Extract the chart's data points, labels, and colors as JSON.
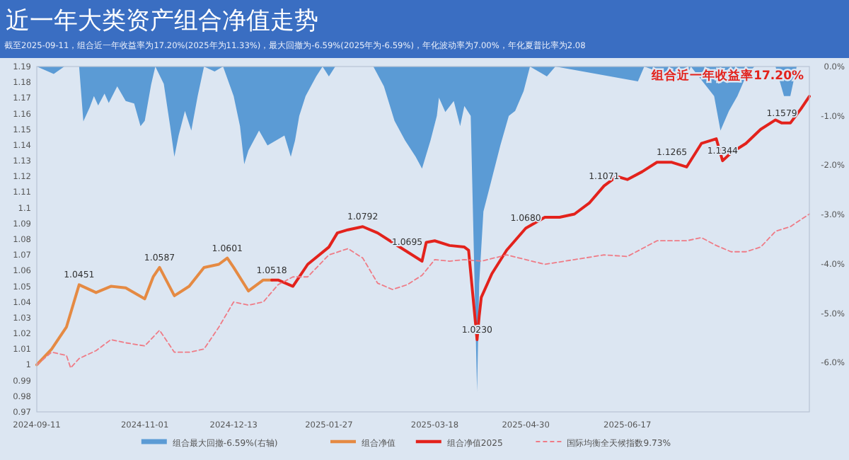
{
  "chart_data": {
    "type": "line",
    "title": "近一年大类资产组合净值走势",
    "subtitle": "截至2025-09-11，组合近一年收益率为17.20%(2025年为11.33%)，最大回撤为-6.59%(2025年为-6.59%)，年化波动率为7.00%，年化夏普比率为2.08",
    "xlim": [
      "2024-09-11",
      "2025-09-11"
    ],
    "xticks": [
      "2024-09-11",
      "2024-11-01",
      "2024-12-13",
      "2025-01-27",
      "2025-03-18",
      "2025-04-30",
      "2025-06-17"
    ],
    "ylim": [
      0.97,
      1.19
    ],
    "yticks": [
      0.97,
      0.98,
      0.99,
      1,
      1.01,
      1.02,
      1.03,
      1.04,
      1.05,
      1.06,
      1.07,
      1.08,
      1.09,
      1.1,
      1.11,
      1.12,
      1.13,
      1.14,
      1.15,
      1.16,
      1.17,
      1.18,
      1.19
    ],
    "y2lim": [
      -7,
      0
    ],
    "y2ticks": [
      {
        "value": 0,
        "label": "0.0%"
      },
      {
        "value": -1,
        "label": "-1.0%"
      },
      {
        "value": -2,
        "label": "-2.0%"
      },
      {
        "value": -3,
        "label": "-3.0%"
      },
      {
        "value": -4,
        "label": "-4.0%"
      },
      {
        "value": -5,
        "label": "-5.0%"
      },
      {
        "value": -6,
        "label": "-6.0%"
      }
    ],
    "legend": "bottom",
    "series": [
      {
        "name": "组合最大回撤-6.59%(右轴)",
        "type": "area",
        "axis": "y2",
        "color": "#5b9bd5",
        "x": [
          "2024-09-11",
          "2024-09-19",
          "2024-09-24",
          "2024-10-01",
          "2024-10-03",
          "2024-10-06",
          "2024-10-08",
          "2024-10-10",
          "2024-10-13",
          "2024-10-15",
          "2024-10-19",
          "2024-10-23",
          "2024-10-27",
          "2024-10-30",
          "2024-11-01",
          "2024-11-04",
          "2024-11-06",
          "2024-11-10",
          "2024-11-13",
          "2024-11-15",
          "2024-11-17",
          "2024-11-20",
          "2024-11-23",
          "2024-11-26",
          "2024-11-29",
          "2024-12-04",
          "2024-12-08",
          "2024-12-13",
          "2024-12-16",
          "2024-12-18",
          "2024-12-20",
          "2024-12-25",
          "2024-12-29",
          "2025-01-02",
          "2025-01-06",
          "2025-01-09",
          "2025-01-11",
          "2025-01-13",
          "2025-01-16",
          "2025-01-21",
          "2025-01-24",
          "2025-01-27",
          "2025-01-30",
          "2025-02-17",
          "2025-02-22",
          "2025-02-27",
          "2025-03-04",
          "2025-03-09",
          "2025-03-12",
          "2025-03-16",
          "2025-03-19",
          "2025-03-20",
          "2025-03-23",
          "2025-03-27",
          "2025-03-30",
          "2025-04-01",
          "2025-04-04",
          "2025-04-07",
          "2025-04-08",
          "2025-04-10",
          "2025-04-14",
          "2025-04-18",
          "2025-04-22",
          "2025-04-25",
          "2025-04-29",
          "2025-05-02",
          "2025-05-10",
          "2025-05-14",
          "2025-06-22",
          "2025-06-25",
          "2025-07-14",
          "2025-07-17",
          "2025-07-28",
          "2025-07-31",
          "2025-08-04",
          "2025-08-08",
          "2025-08-12",
          "2025-08-16",
          "2025-08-26",
          "2025-08-30",
          "2025-09-02",
          "2025-09-05",
          "2025-09-11"
        ],
        "values": [
          0,
          -0.15,
          0,
          0,
          -1.11,
          -0.83,
          -0.6,
          -0.79,
          -0.55,
          -0.74,
          -0.4,
          -0.7,
          -0.75,
          -1.21,
          -1.1,
          -0.37,
          0,
          -0.35,
          -1.21,
          -1.83,
          -1.4,
          -0.9,
          -1.3,
          -0.6,
          0,
          -0.1,
          0,
          -0.6,
          -1.21,
          -1.98,
          -1.7,
          -1.3,
          -1.6,
          -1.5,
          -1.4,
          -1.83,
          -1.5,
          -1.0,
          -0.6,
          -0.2,
          0,
          -0.2,
          0,
          0,
          -0.4,
          -1.1,
          -1.5,
          -1.83,
          -2.07,
          -1.5,
          -1.0,
          -0.63,
          -0.92,
          -0.7,
          -1.21,
          -0.8,
          -1.0,
          -6.59,
          -4.4,
          -2.94,
          -2.27,
          -1.6,
          -1.0,
          -0.9,
          -0.5,
          0,
          -0.2,
          0,
          -0.3,
          0,
          -0.3,
          0,
          -0.6,
          -1.3,
          -0.9,
          -0.6,
          -0.2,
          0,
          0,
          -0.6,
          -0.6,
          0,
          0
        ]
      },
      {
        "name": "组合净值",
        "type": "line",
        "color": "#e58a43",
        "x": [
          "2024-09-11",
          "2024-09-18",
          "2024-09-25",
          "2024-10-01",
          "2024-10-09",
          "2024-10-16",
          "2024-10-23",
          "2024-11-01",
          "2024-11-05",
          "2024-11-08",
          "2024-11-15",
          "2024-11-22",
          "2024-11-29",
          "2024-12-06",
          "2024-12-10",
          "2024-12-13",
          "2024-12-20",
          "2024-12-27",
          "2024-12-31"
        ],
        "values": [
          1.0,
          1.01,
          1.024,
          1.051,
          1.046,
          1.05,
          1.049,
          1.042,
          1.056,
          1.062,
          1.044,
          1.05,
          1.062,
          1.064,
          1.068,
          1.062,
          1.047,
          1.054,
          1.054
        ]
      },
      {
        "name": "组合净值2025",
        "type": "line",
        "color": "#e3221c",
        "x": [
          "2024-12-31",
          "2025-01-03",
          "2025-01-10",
          "2025-01-17",
          "2025-01-27",
          "2025-01-31",
          "2025-02-05",
          "2025-02-12",
          "2025-02-19",
          "2025-02-26",
          "2025-03-05",
          "2025-03-12",
          "2025-03-14",
          "2025-03-18",
          "2025-03-25",
          "2025-04-01",
          "2025-04-03",
          "2025-04-07",
          "2025-04-08",
          "2025-04-09",
          "2025-04-14",
          "2025-04-21",
          "2025-04-30",
          "2025-05-09",
          "2025-05-16",
          "2025-05-23",
          "2025-05-30",
          "2025-06-06",
          "2025-06-12",
          "2025-06-17",
          "2025-06-24",
          "2025-07-01",
          "2025-07-08",
          "2025-07-15",
          "2025-07-22",
          "2025-07-29",
          "2025-08-01",
          "2025-08-05",
          "2025-08-12",
          "2025-08-19",
          "2025-08-26",
          "2025-08-29",
          "2025-09-02",
          "2025-09-07",
          "2025-09-11"
        ],
        "values": [
          1.054,
          1.054,
          1.05,
          1.064,
          1.075,
          1.084,
          1.086,
          1.088,
          1.084,
          1.078,
          1.072,
          1.066,
          1.078,
          1.079,
          1.076,
          1.075,
          1.073,
          1.016,
          1.031,
          1.043,
          1.058,
          1.073,
          1.087,
          1.094,
          1.094,
          1.096,
          1.103,
          1.114,
          1.12,
          1.118,
          1.123,
          1.129,
          1.129,
          1.126,
          1.141,
          1.144,
          1.13,
          1.135,
          1.141,
          1.15,
          1.156,
          1.154,
          1.154,
          1.163,
          1.171
        ]
      },
      {
        "name": "国际均衡全天候指数9.73%",
        "type": "line",
        "line_style": "dashed",
        "color": "#ef7b86",
        "x": [
          "2024-09-11",
          "2024-09-18",
          "2024-09-25",
          "2024-09-27",
          "2024-10-01",
          "2024-10-09",
          "2024-10-16",
          "2024-10-23",
          "2024-11-01",
          "2024-11-08",
          "2024-11-15",
          "2024-11-22",
          "2024-11-29",
          "2024-12-06",
          "2024-12-13",
          "2024-12-20",
          "2024-12-27",
          "2025-01-03",
          "2025-01-10",
          "2025-01-17",
          "2025-01-27",
          "2025-02-05",
          "2025-02-12",
          "2025-02-19",
          "2025-02-26",
          "2025-03-05",
          "2025-03-12",
          "2025-03-18",
          "2025-03-25",
          "2025-04-01",
          "2025-04-09",
          "2025-04-21",
          "2025-04-30",
          "2025-05-09",
          "2025-05-23",
          "2025-06-06",
          "2025-06-17",
          "2025-07-01",
          "2025-07-15",
          "2025-07-22",
          "2025-07-29",
          "2025-08-05",
          "2025-08-12",
          "2025-08-19",
          "2025-08-26",
          "2025-09-02",
          "2025-09-11"
        ],
        "values": [
          1.0,
          1.008,
          1.006,
          0.998,
          1.004,
          1.009,
          1.016,
          1.014,
          1.012,
          1.022,
          1.008,
          1.008,
          1.01,
          1.024,
          1.04,
          1.038,
          1.04,
          1.051,
          1.056,
          1.056,
          1.07,
          1.074,
          1.068,
          1.052,
          1.048,
          1.051,
          1.057,
          1.067,
          1.066,
          1.067,
          1.066,
          1.07,
          1.067,
          1.064,
          1.067,
          1.07,
          1.069,
          1.079,
          1.079,
          1.081,
          1.076,
          1.072,
          1.072,
          1.075,
          1.085,
          1.088,
          1.096
        ]
      }
    ],
    "annotations": [
      {
        "text": "1.0451",
        "x": "2024-10-01",
        "y": 1.051
      },
      {
        "text": "1.0587",
        "x": "2024-11-08",
        "y": 1.062
      },
      {
        "text": "1.0601",
        "x": "2024-12-10",
        "y": 1.068
      },
      {
        "text": "1.0518",
        "x": "2024-12-31",
        "y": 1.054
      },
      {
        "text": "1.0792",
        "x": "2025-02-12",
        "y": 1.088
      },
      {
        "text": "1.0695",
        "x": "2025-03-05",
        "y": 1.072
      },
      {
        "text": "1.0230",
        "x": "2025-04-07",
        "y": 1.016
      },
      {
        "text": "1.0680",
        "x": "2025-04-30",
        "y": 1.087
      },
      {
        "text": "1.1071",
        "x": "2025-06-06",
        "y": 1.114
      },
      {
        "text": "1.1265",
        "x": "2025-07-08",
        "y": 1.129
      },
      {
        "text": "1.1344",
        "x": "2025-08-01",
        "y": 1.13
      },
      {
        "text": "1.1579",
        "x": "2025-08-29",
        "y": 1.154
      },
      "组合近一年收益率17.20%"
    ]
  }
}
